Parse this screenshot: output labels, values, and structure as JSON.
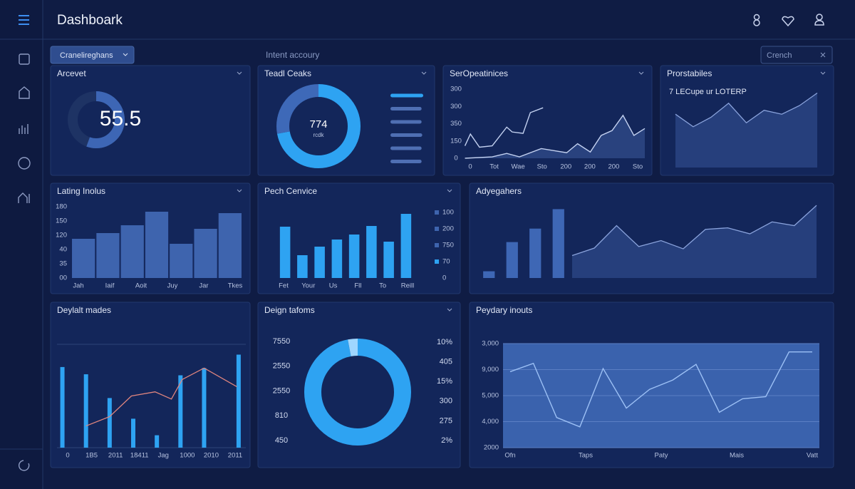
{
  "header": {
    "title": "Dashboark"
  },
  "toolbar": {
    "dropdown": "Cranelireghans",
    "label": "Intent accoury",
    "search": "Crench"
  },
  "panels": [
    {
      "title": "Arcevet",
      "chart": {
        "type": "gauge",
        "value": 55.5,
        "max": 100,
        "color": "#3d66b5",
        "track": "#1e3364"
      }
    },
    {
      "title": "Teadl Ceaks",
      "chart": {
        "type": "donut",
        "center_label": "774",
        "sub_label": "rcdk",
        "values": [
          72,
          28
        ],
        "colors": [
          "#2ea3f2",
          "#3e69b8"
        ],
        "bars": [
          100,
          95,
          95,
          97,
          95,
          95
        ],
        "bar_colors": [
          "#2ea3f2",
          "#4f6fb3",
          "#4f6fb3",
          "#4f6fb3",
          "#4f6fb3",
          "#4f6fb3"
        ]
      }
    },
    {
      "title": "SerOpeatinices",
      "chart": {
        "type": "line",
        "xlim": [
          0,
          100
        ],
        "ylim": [
          0,
          100
        ],
        "y_labels": [
          "300",
          "300",
          "350",
          "150",
          "0"
        ],
        "x_labels": [
          "0",
          "Tot",
          "Wae",
          "Sto",
          "200",
          "200",
          "200",
          "Sto"
        ],
        "series": [
          {
            "x": [
              1,
              4,
              9,
              16,
              24,
              27,
              33,
              37,
              44
            ],
            "values": [
              18,
              35,
              16,
              18,
              45,
              38,
              36,
              66,
              73
            ],
            "color": "#c3d1f0",
            "area": false
          },
          {
            "x": [
              1,
              16,
              24,
              31,
              43,
              57,
              63,
              70,
              76,
              82,
              88,
              94,
              100
            ],
            "values": [
              0,
              2,
              7,
              2,
              14,
              8,
              21,
              9,
              33,
              40,
              62,
              33,
              43
            ],
            "color": "#c3d1f0",
            "area": true
          }
        ]
      }
    },
    {
      "title": "Prorstabiles",
      "subtitle": "7 LECupe ur LOTERP",
      "chart": {
        "type": "area",
        "ylim": [
          0,
          100
        ],
        "values": [
          68,
          52,
          64,
          82,
          57,
          73,
          68,
          79,
          95
        ],
        "color": "#8aa3dc"
      }
    },
    {
      "title": "Lating Inolus",
      "chart": {
        "type": "bar",
        "ylim": [
          0,
          100
        ],
        "values": [
          55,
          63,
          74,
          93,
          48,
          69,
          91
        ],
        "color": "#3e64ae",
        "y_labels": [
          "180",
          "150",
          "120",
          "40",
          "35",
          "00"
        ],
        "x_labels": [
          "Jah",
          "Iaif",
          "Aoit",
          "Juy",
          "Jar",
          "Tkes"
        ]
      }
    },
    {
      "title": "Pech Cenvice",
      "chart": {
        "type": "bar",
        "ylim": [
          0,
          100
        ],
        "values": [
          72,
          32,
          44,
          54,
          61,
          73,
          51,
          90
        ],
        "color": "#2ea3f2",
        "legend_labels": [
          "100",
          "200",
          "750",
          "70",
          "0"
        ],
        "x_labels": [
          "Fet",
          "Your",
          "Us",
          "Fll",
          "To",
          "Reill"
        ]
      }
    },
    {
      "title": "Adyegahers",
      "chart": {
        "type": "combo",
        "ylim": [
          0,
          100
        ],
        "bars": [
          9,
          48,
          66,
          92
        ],
        "bar_color": "#3e67b5",
        "area": [
          30,
          40,
          70,
          42,
          50,
          39,
          65,
          67,
          59,
          75,
          70,
          97
        ],
        "area_color": "#8aa3dc"
      }
    },
    {
      "title": "Deylalt mades",
      "chart": {
        "type": "combo_x",
        "xlim": [
          0,
          100
        ],
        "ylim": [
          0,
          100
        ],
        "bar_x": [
          1,
          14,
          27,
          40,
          53,
          66,
          79,
          98
        ],
        "bars": [
          78,
          71,
          48,
          28,
          12,
          70,
          77,
          90
        ],
        "bar_color": "#2ea3f2",
        "line_x": [
          14,
          27,
          39,
          52,
          61,
          67,
          79,
          97
        ],
        "line": [
          21,
          30,
          50,
          54,
          47,
          66,
          77,
          59
        ],
        "line_color": "#e0857e",
        "x_labels": [
          "0",
          "1B5",
          "2011",
          "18411",
          "Jag",
          "1000",
          "2010",
          "2011"
        ]
      }
    },
    {
      "title": "Deign tafoms",
      "chart": {
        "type": "donut",
        "values": [
          97,
          3
        ],
        "colors": [
          "#2ea3f2",
          "#9fd6ff"
        ],
        "left_labels": [
          "7550",
          "2550",
          "2550",
          "810",
          "450"
        ],
        "right_labels": [
          "10%",
          "405",
          "15%",
          "300",
          "275",
          "2%"
        ]
      }
    },
    {
      "title": "Peydary inouts",
      "chart": {
        "type": "line",
        "ylim": [
          0,
          100
        ],
        "plot_color": "#3a62ad",
        "y_labels": [
          "3,000",
          "9,000",
          "5,000",
          "4,000",
          "2000"
        ],
        "x_labels": [
          "Ofn",
          "Taps",
          "Paty",
          "Mais",
          "Vatt"
        ],
        "series": [
          {
            "values": [
              73,
              81,
              29,
              20,
              76,
              38,
              56,
              65,
              80,
              34,
              47,
              49,
              92,
              92
            ],
            "color": "#9cc0f5",
            "area": false
          }
        ]
      }
    }
  ]
}
